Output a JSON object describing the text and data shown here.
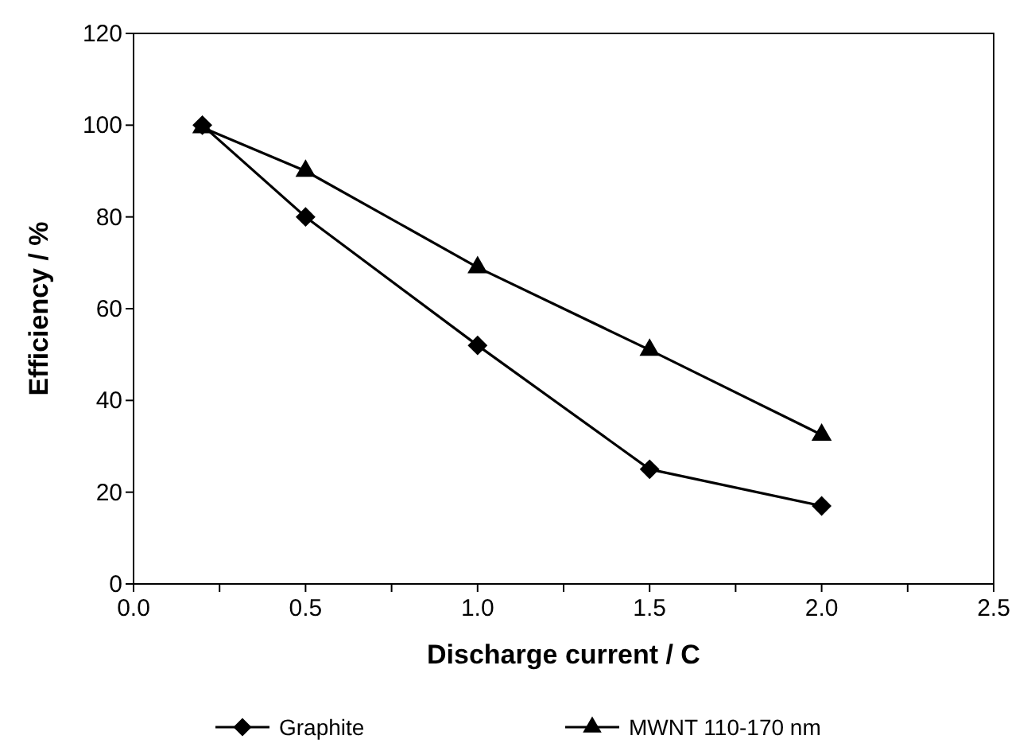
{
  "chart_data": {
    "type": "line",
    "xlabel": "Discharge current / C",
    "ylabel": "Efficiency / %",
    "xlim": [
      0,
      2.5
    ],
    "ylim": [
      0,
      120
    ],
    "xticks": [
      {
        "value": 0,
        "label": "0.0"
      },
      {
        "value": 0.25,
        "label": null
      },
      {
        "value": 0.5,
        "label": "0.5"
      },
      {
        "value": 0.75,
        "label": null
      },
      {
        "value": 1,
        "label": "1.0"
      },
      {
        "value": 1.25,
        "label": null
      },
      {
        "value": 1.5,
        "label": "1.5"
      },
      {
        "value": 1.75,
        "label": null
      },
      {
        "value": 2,
        "label": "2.0"
      },
      {
        "value": 2.25,
        "label": null
      },
      {
        "value": 2.5,
        "label": "2.5"
      }
    ],
    "yticks": [
      0,
      20,
      40,
      60,
      80,
      100,
      120
    ],
    "grid": false,
    "legend": "bottom",
    "line_style": "solid",
    "series": [
      {
        "name": "Graphite",
        "color": "#000000",
        "marker": "diamond",
        "x": [
          0.2,
          0.5,
          1.0,
          1.5,
          2.0
        ],
        "values": [
          100,
          80,
          52,
          25,
          17
        ]
      },
      {
        "name": "MWNT 110-170 nm",
        "color": "#000000",
        "marker": "triangle",
        "x": [
          0.2,
          0.5,
          1.0,
          1.5,
          2.0
        ],
        "values": [
          99.5,
          90,
          69,
          51,
          32.5
        ]
      }
    ]
  }
}
